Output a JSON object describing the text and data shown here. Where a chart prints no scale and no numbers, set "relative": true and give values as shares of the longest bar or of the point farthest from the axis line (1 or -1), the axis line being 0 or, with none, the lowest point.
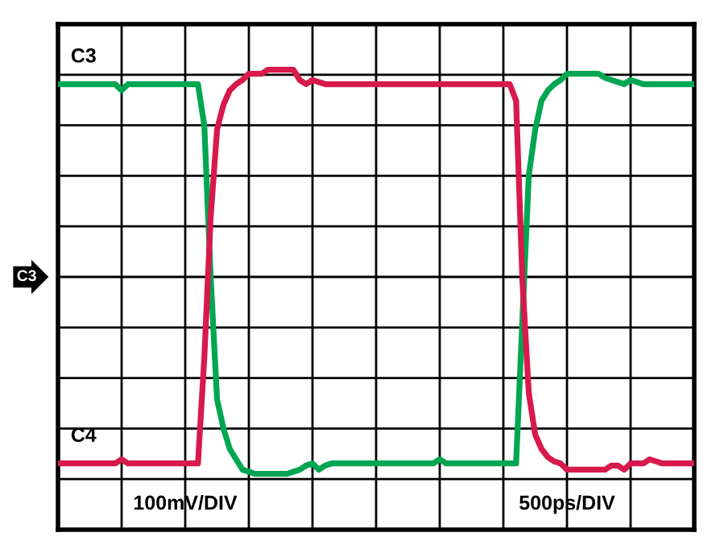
{
  "chart_data": {
    "type": "line",
    "relative": true,
    "categories": [
      null,
      null,
      null,
      null,
      null,
      null,
      null,
      null,
      null,
      null,
      null,
      null,
      null,
      null,
      null,
      null,
      null,
      null,
      null,
      null,
      null,
      null,
      null,
      null,
      null,
      null,
      null,
      null,
      null,
      null,
      null,
      null,
      null,
      null,
      null,
      null,
      null,
      null,
      null,
      null,
      null,
      null,
      null,
      null,
      null,
      null,
      null,
      null,
      null,
      null,
      null,
      null,
      null,
      null,
      null,
      null,
      null,
      null,
      null,
      null,
      null,
      null,
      null,
      null,
      null,
      null,
      null,
      null,
      null,
      null,
      null,
      null,
      null,
      null,
      null,
      null,
      null,
      null,
      null,
      null,
      null,
      null,
      null,
      null,
      null,
      null,
      null,
      null,
      null,
      null,
      null,
      null,
      null,
      null,
      null,
      null,
      null,
      null,
      null,
      null,
      null
    ],
    "grid": true,
    "line_style": "solid",
    "series": [
      {
        "name": "C3",
        "color": "#00a651",
        "values": [
          0.93,
          0.93,
          0.93,
          0.93,
          0.93,
          0.93,
          0.93,
          0.93,
          0.93,
          0.93,
          0.9,
          0.93,
          0.93,
          0.93,
          0.93,
          0.93,
          0.93,
          0.93,
          0.93,
          0.93,
          0.93,
          0.93,
          0.93,
          0.73,
          0,
          -0.59,
          -0.73,
          -0.83,
          -0.88,
          -0.93,
          -0.94,
          -0.95,
          -0.95,
          -0.95,
          -0.95,
          -0.95,
          -0.95,
          -0.94,
          -0.93,
          -0.91,
          -0.9,
          -0.93,
          -0.91,
          -0.9,
          -0.9,
          -0.9,
          -0.9,
          -0.9,
          -0.9,
          -0.9,
          -0.9,
          -0.9,
          -0.9,
          -0.9,
          -0.9,
          -0.9,
          -0.9,
          -0.9,
          -0.9,
          -0.9,
          -0.88,
          -0.9,
          -0.9,
          -0.9,
          -0.9,
          -0.9,
          -0.9,
          -0.9,
          -0.9,
          -0.9,
          -0.9,
          -0.9,
          -0.9,
          -0.2,
          0.49,
          0.71,
          0.85,
          0.9,
          0.93,
          0.95,
          0.98,
          0.98,
          0.98,
          0.98,
          0.98,
          0.98,
          0.96,
          0.95,
          0.94,
          0.93,
          0.95,
          0.94,
          0.93,
          0.93,
          0.93,
          0.93,
          0.93,
          0.93,
          0.93,
          0.93,
          0.93
        ]
      },
      {
        "name": "C4",
        "color": "#d7194b",
        "values": [
          -0.9,
          -0.9,
          -0.9,
          -0.9,
          -0.9,
          -0.9,
          -0.9,
          -0.9,
          -0.9,
          -0.9,
          -0.88,
          -0.9,
          -0.9,
          -0.9,
          -0.9,
          -0.9,
          -0.9,
          -0.9,
          -0.9,
          -0.9,
          -0.9,
          -0.9,
          -0.9,
          -0.39,
          0.29,
          0.71,
          0.83,
          0.9,
          0.93,
          0.95,
          0.98,
          0.98,
          0.98,
          1,
          1,
          1,
          1,
          1,
          0.95,
          0.93,
          0.95,
          0.94,
          0.93,
          0.93,
          0.93,
          0.93,
          0.93,
          0.93,
          0.93,
          0.93,
          0.93,
          0.93,
          0.93,
          0.93,
          0.93,
          0.93,
          0.93,
          0.93,
          0.93,
          0.93,
          0.93,
          0.93,
          0.93,
          0.93,
          0.93,
          0.93,
          0.93,
          0.93,
          0.93,
          0.93,
          0.93,
          0.93,
          0.85,
          -0.02,
          -0.56,
          -0.76,
          -0.83,
          -0.87,
          -0.89,
          -0.9,
          -0.93,
          -0.93,
          -0.93,
          -0.93,
          -0.93,
          -0.93,
          -0.93,
          -0.91,
          -0.91,
          -0.93,
          -0.9,
          -0.9,
          -0.9,
          -0.88,
          -0.89,
          -0.9,
          -0.9,
          -0.9,
          -0.9,
          -0.9,
          -0.9
        ]
      }
    ],
    "annotations": [
      "100mV/DIV",
      "500ps/DIV",
      "C3"
    ]
  }
}
